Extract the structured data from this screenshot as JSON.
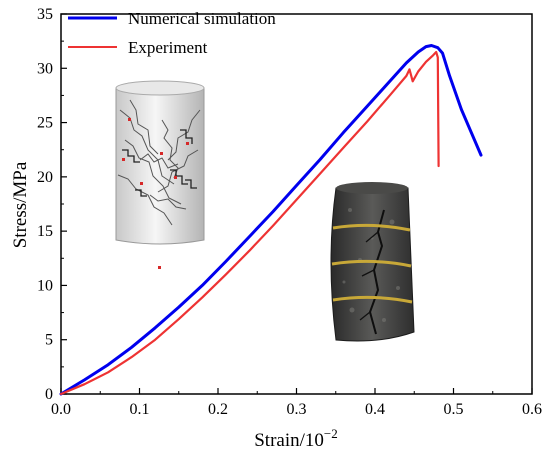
{
  "chart_data": {
    "type": "line",
    "xlabel": "Strain/10",
    "xlabel_exponent": "−2",
    "ylabel": "Stress/MPa",
    "xlim": [
      0.0,
      0.6
    ],
    "ylim": [
      0,
      35
    ],
    "x_ticks": [
      "0.0",
      "0.1",
      "0.2",
      "0.3",
      "0.4",
      "0.5",
      "0.6"
    ],
    "y_ticks": [
      "0",
      "5",
      "10",
      "15",
      "20",
      "25",
      "30",
      "35"
    ],
    "grid": false,
    "legend_position": "top-left",
    "series": [
      {
        "name": "Numerical simulation",
        "color": "#0000ee",
        "points": [
          [
            0.0,
            0.0
          ],
          [
            0.03,
            1.3
          ],
          [
            0.06,
            2.7
          ],
          [
            0.09,
            4.3
          ],
          [
            0.12,
            6.1
          ],
          [
            0.15,
            8.0
          ],
          [
            0.18,
            10.0
          ],
          [
            0.21,
            12.2
          ],
          [
            0.24,
            14.5
          ],
          [
            0.27,
            16.8
          ],
          [
            0.3,
            19.2
          ],
          [
            0.33,
            21.6
          ],
          [
            0.36,
            24.1
          ],
          [
            0.39,
            26.5
          ],
          [
            0.42,
            28.9
          ],
          [
            0.44,
            30.5
          ],
          [
            0.455,
            31.5
          ],
          [
            0.465,
            32.0
          ],
          [
            0.472,
            32.1
          ],
          [
            0.48,
            31.9
          ],
          [
            0.486,
            31.4
          ],
          [
            0.495,
            29.3
          ],
          [
            0.51,
            26.2
          ],
          [
            0.535,
            22.0
          ]
        ]
      },
      {
        "name": "Experiment",
        "color": "#ee3333",
        "points": [
          [
            0.0,
            0.0
          ],
          [
            0.03,
            0.9
          ],
          [
            0.06,
            2.0
          ],
          [
            0.09,
            3.4
          ],
          [
            0.12,
            5.0
          ],
          [
            0.15,
            6.9
          ],
          [
            0.18,
            8.9
          ],
          [
            0.21,
            11.0
          ],
          [
            0.24,
            13.2
          ],
          [
            0.27,
            15.5
          ],
          [
            0.3,
            17.9
          ],
          [
            0.33,
            20.3
          ],
          [
            0.36,
            22.7
          ],
          [
            0.39,
            25.1
          ],
          [
            0.42,
            27.6
          ],
          [
            0.44,
            29.3
          ],
          [
            0.444,
            29.9
          ],
          [
            0.448,
            28.8
          ],
          [
            0.455,
            29.7
          ],
          [
            0.465,
            30.6
          ],
          [
            0.474,
            31.2
          ],
          [
            0.478,
            31.5
          ],
          [
            0.48,
            31.0
          ],
          [
            0.481,
            21.0
          ]
        ]
      }
    ]
  }
}
